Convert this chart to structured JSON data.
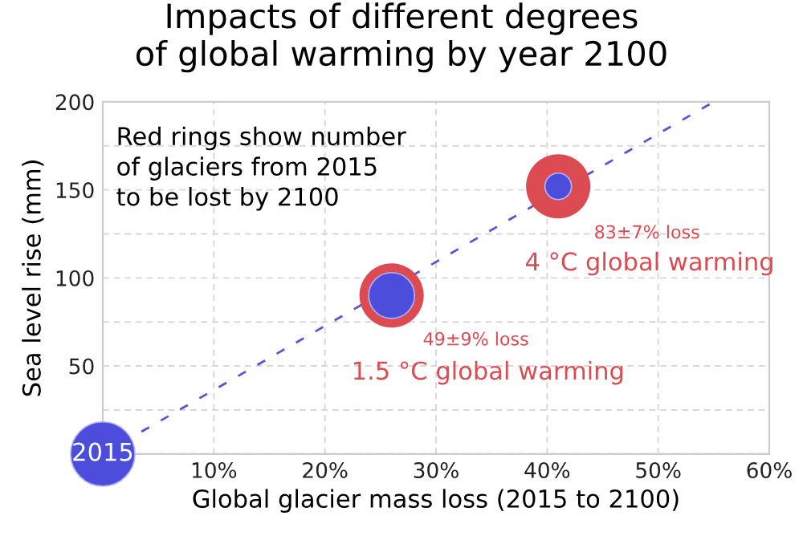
{
  "chart_data": {
    "type": "bubble",
    "title": "Impacts of different degrees\nof global warming by year 2100",
    "xlabel": "Global glacier mass loss (2015 to 2100)",
    "ylabel": "Sea level rise (mm)",
    "series": [
      {
        "type": "line",
        "color": "#5555dd",
        "x": [
          0,
          55
        ],
        "values": [
          0,
          200
        ],
        "line_style": "dashed"
      },
      {
        "color": "#dd4b52",
        "x": [
          26,
          41
        ],
        "values": [
          90,
          152
        ],
        "sizes": [
          1,
          1
        ]
      },
      {
        "color": "#4d4ddb",
        "x": [
          0,
          26,
          41
        ],
        "values": [
          0,
          90,
          152
        ],
        "sizes": [
          1,
          0.51,
          0.17
        ]
      }
    ],
    "xlim": [
      0,
      60
    ],
    "ylim": [
      0,
      200
    ],
    "xticks": [
      {
        "value": 0,
        "label": null
      },
      {
        "value": 10,
        "label": "10%"
      },
      {
        "value": 20,
        "label": "20%"
      },
      {
        "value": 30,
        "label": "30%"
      },
      {
        "value": 40,
        "label": "40%"
      },
      {
        "value": 50,
        "label": "50%"
      },
      {
        "value": 60,
        "label": "60%"
      }
    ],
    "yticks": [
      {
        "value": 0,
        "label": null
      },
      {
        "value": 25,
        "label": null
      },
      50,
      {
        "value": 75,
        "label": null
      },
      100,
      {
        "value": 125,
        "label": null
      },
      150,
      {
        "value": 175,
        "label": null
      },
      200
    ],
    "grid": true,
    "legend": false,
    "annotations": [
      "Red rings show number\nof glaciers from 2015\nto be lost by 2100",
      {
        "text": "2015",
        "x": 0,
        "y": 0
      },
      {
        "text": "49±9% loss",
        "x": 26,
        "y": 90
      },
      {
        "text": "1.5 °C global warming",
        "x": 26,
        "y": 90
      },
      {
        "text": "83±7% loss",
        "x": 41,
        "y": 152
      },
      {
        "text": "4 °C global warming",
        "x": 41,
        "y": 152
      }
    ]
  }
}
